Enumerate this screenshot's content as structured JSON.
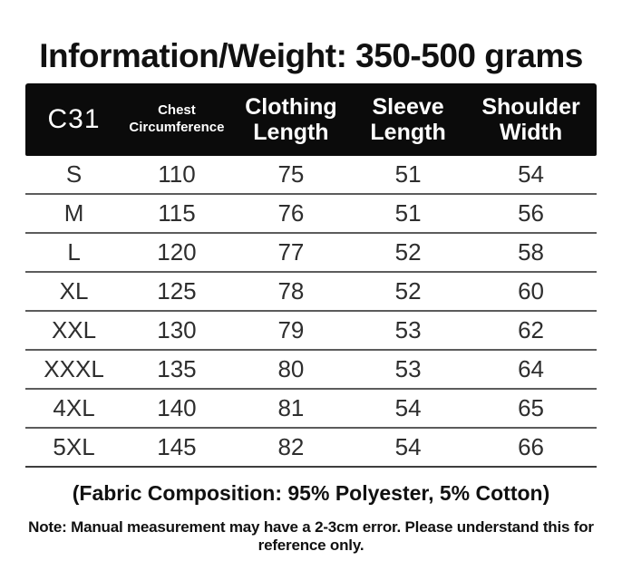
{
  "page": {
    "title": "Information/Weight: 350-500 grams",
    "fabric_composition": "(Fabric Composition: 95% Polyester, 5% Cotton)",
    "note": "Note: Manual measurement may have a 2-3cm error. Please understand this for reference only."
  },
  "table": {
    "model": "C31",
    "columns": [
      "Chest Circumference",
      "Clothing Length",
      "Sleeve Length",
      "Shoulder Width"
    ],
    "rows": [
      {
        "size": "S",
        "chest": "110",
        "clothing": "75",
        "sleeve": "51",
        "shoulder": "54"
      },
      {
        "size": "M",
        "chest": "115",
        "clothing": "76",
        "sleeve": "51",
        "shoulder": "56"
      },
      {
        "size": "L",
        "chest": "120",
        "clothing": "77",
        "sleeve": "52",
        "shoulder": "58"
      },
      {
        "size": "XL",
        "chest": "125",
        "clothing": "78",
        "sleeve": "52",
        "shoulder": "60"
      },
      {
        "size": "XXL",
        "chest": "130",
        "clothing": "79",
        "sleeve": "53",
        "shoulder": "62"
      },
      {
        "size": "XXXL",
        "chest": "135",
        "clothing": "80",
        "sleeve": "53",
        "shoulder": "64"
      },
      {
        "size": "4XL",
        "chest": "140",
        "clothing": "81",
        "sleeve": "54",
        "shoulder": "65"
      },
      {
        "size": "5XL",
        "chest": "145",
        "clothing": "82",
        "sleeve": "54",
        "shoulder": "66"
      }
    ]
  },
  "colors": {
    "header_background": "#0b0b0b",
    "header_text": "#ffffff",
    "body_text": "#2e2e2e",
    "row_separator": "#5c5c5c",
    "page_background": "#ffffff"
  }
}
